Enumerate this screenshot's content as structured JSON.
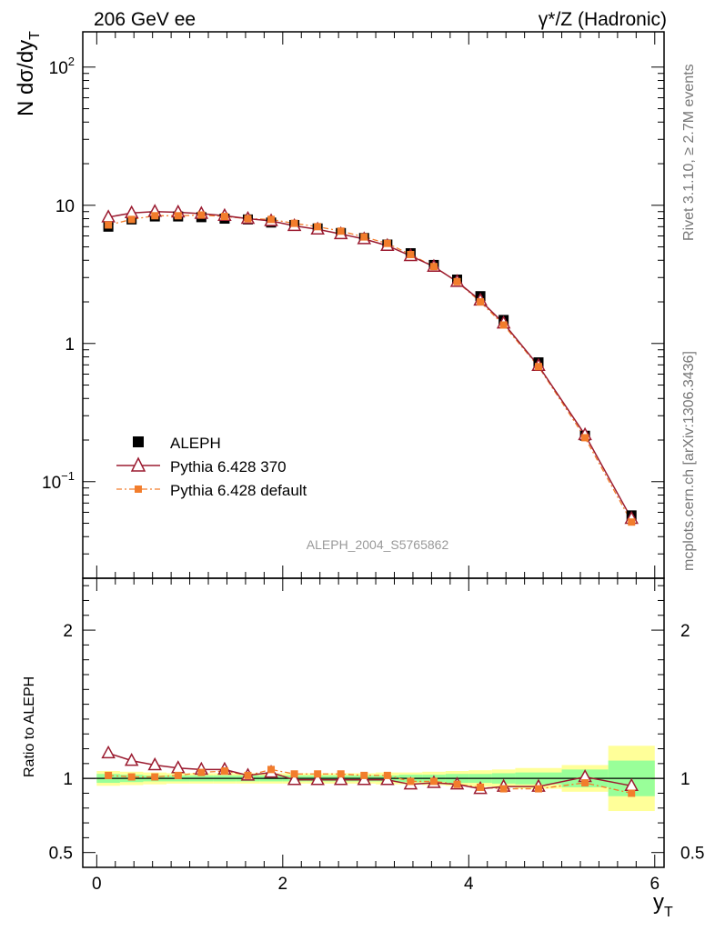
{
  "header": {
    "left_title": "206 GeV ee",
    "right_title": "γ*/Z (Hadronic)"
  },
  "side_labels": {
    "rivet": "Rivet 3.1.10, ≥ 2.7M events",
    "mcplots": "mcplots.cern.ch [arXiv:1306.3436]"
  },
  "analysis_label": "ALEPH_2004_S5765862",
  "colors": {
    "aleph": "#000000",
    "pythia370": "#9b1b30",
    "pythia_default": "#f27d2c",
    "band_inner": "#99ff99",
    "band_outer": "#ffff99"
  },
  "chart_data": [
    {
      "type": "scatter",
      "panel": "main",
      "ylabel": "N dσ/dy_T",
      "yscale": "log",
      "ylim": [
        0.02,
        180
      ],
      "xlim": [
        -0.15,
        6.1
      ],
      "yticks": [
        "10^-1",
        "1",
        "10",
        "10^2"
      ],
      "legend": [
        "ALEPH",
        "Pythia 6.428 370",
        "Pythia 6.428 default"
      ],
      "legend_position": "bottom-left",
      "x": [
        0.125,
        0.375,
        0.625,
        0.875,
        1.125,
        1.375,
        1.625,
        1.875,
        2.125,
        2.375,
        2.625,
        2.875,
        3.125,
        3.375,
        3.625,
        3.875,
        4.125,
        4.375,
        4.75,
        5.25,
        5.75
      ],
      "series": [
        {
          "name": "ALEPH",
          "marker": "square",
          "values": [
            7.0,
            7.9,
            8.3,
            8.3,
            8.2,
            8.0,
            7.9,
            7.5,
            7.2,
            6.8,
            6.3,
            5.8,
            5.2,
            4.5,
            3.7,
            2.9,
            2.2,
            1.48,
            0.73,
            0.215,
            0.057
          ]
        },
        {
          "name": "Pythia 6.428 370",
          "marker": "triangle",
          "values": [
            8.2,
            8.8,
            9.0,
            8.9,
            8.7,
            8.4,
            8.0,
            7.7,
            7.1,
            6.7,
            6.2,
            5.7,
            5.1,
            4.3,
            3.6,
            2.8,
            2.05,
            1.4,
            0.69,
            0.218,
            0.054
          ]
        },
        {
          "name": "Pythia 6.428 default",
          "marker": "square-small",
          "values": [
            7.2,
            7.9,
            8.4,
            8.4,
            8.5,
            8.3,
            8.0,
            7.9,
            7.4,
            7.0,
            6.5,
            5.9,
            5.3,
            4.4,
            3.6,
            2.8,
            2.0,
            1.36,
            0.68,
            0.208,
            0.051
          ]
        }
      ]
    },
    {
      "type": "line",
      "panel": "ratio",
      "xlabel": "y_T",
      "ylabel": "Ratio to ALEPH",
      "ylim": [
        0.4,
        2.35
      ],
      "xlim": [
        -0.15,
        6.1
      ],
      "xticks": [
        0,
        2,
        4,
        6
      ],
      "yticks": [
        0.5,
        1,
        2
      ],
      "x": [
        0.125,
        0.375,
        0.625,
        0.875,
        1.125,
        1.375,
        1.625,
        1.875,
        2.125,
        2.375,
        2.625,
        2.875,
        3.125,
        3.375,
        3.625,
        3.875,
        4.125,
        4.375,
        4.75,
        5.25,
        5.75
      ],
      "bins": [
        [
          0,
          0.25
        ],
        [
          0.25,
          0.5
        ],
        [
          0.5,
          0.75
        ],
        [
          0.75,
          1.0
        ],
        [
          1.0,
          1.25
        ],
        [
          1.25,
          1.5
        ],
        [
          1.5,
          1.75
        ],
        [
          1.75,
          2.0
        ],
        [
          2.0,
          2.25
        ],
        [
          2.25,
          2.5
        ],
        [
          2.5,
          2.75
        ],
        [
          2.75,
          3.0
        ],
        [
          3.0,
          3.25
        ],
        [
          3.25,
          3.5
        ],
        [
          3.5,
          3.75
        ],
        [
          3.75,
          4.0
        ],
        [
          4.0,
          4.25
        ],
        [
          4.25,
          4.5
        ],
        [
          4.5,
          5.0
        ],
        [
          5.0,
          5.5
        ],
        [
          5.5,
          6.0
        ]
      ],
      "band_inner": [
        0.03,
        0.025,
        0.02,
        0.02,
        0.02,
        0.02,
        0.02,
        0.02,
        0.02,
        0.02,
        0.02,
        0.02,
        0.02,
        0.025,
        0.025,
        0.03,
        0.03,
        0.035,
        0.04,
        0.06,
        0.12
      ],
      "band_outer": [
        0.05,
        0.045,
        0.04,
        0.035,
        0.035,
        0.035,
        0.035,
        0.035,
        0.035,
        0.035,
        0.035,
        0.035,
        0.04,
        0.04,
        0.045,
        0.05,
        0.055,
        0.06,
        0.07,
        0.09,
        0.22
      ],
      "series": [
        {
          "name": "Pythia 6.428 370",
          "values": [
            1.17,
            1.12,
            1.09,
            1.07,
            1.06,
            1.06,
            1.02,
            1.04,
            0.99,
            0.99,
            0.99,
            0.99,
            0.99,
            0.96,
            0.97,
            0.96,
            0.93,
            0.945,
            0.945,
            1.01,
            0.95
          ]
        },
        {
          "name": "Pythia 6.428 default",
          "values": [
            1.02,
            1.01,
            1.01,
            1.02,
            1.04,
            1.05,
            1.02,
            1.06,
            1.03,
            1.03,
            1.03,
            1.02,
            1.02,
            0.98,
            0.98,
            0.96,
            0.94,
            0.93,
            0.93,
            0.97,
            0.9
          ]
        }
      ]
    }
  ]
}
